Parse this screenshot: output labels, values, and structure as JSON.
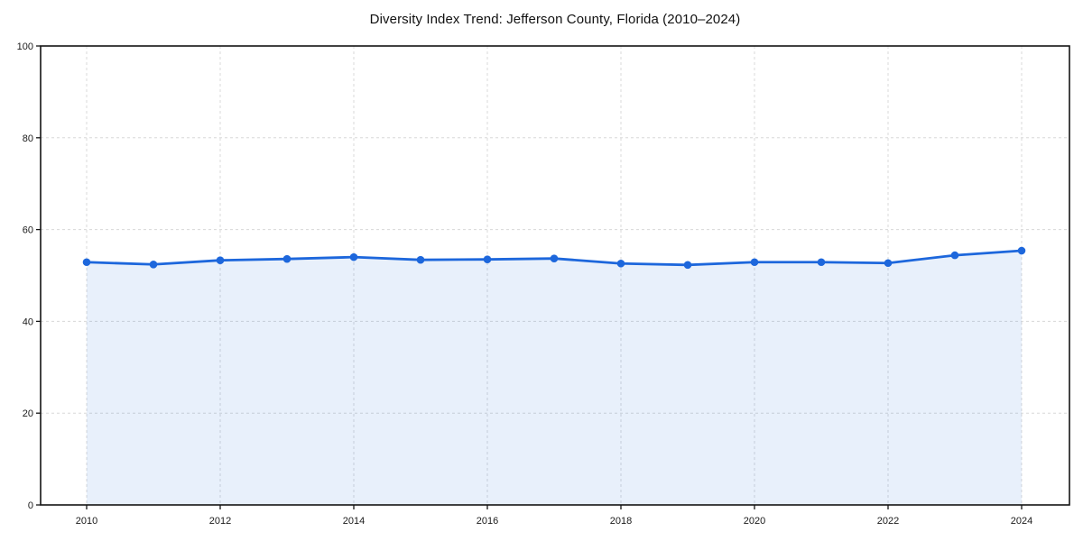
{
  "chart_data": {
    "type": "line",
    "title": "Diversity Index Trend: Jefferson County, Florida (2010–2024)",
    "x": [
      2010,
      2011,
      2012,
      2013,
      2014,
      2015,
      2016,
      2017,
      2018,
      2019,
      2020,
      2021,
      2022,
      2023,
      2024
    ],
    "series": [
      {
        "name": "Diversity Index",
        "values": [
          52.9,
          52.4,
          53.3,
          53.6,
          54.0,
          53.4,
          53.5,
          53.7,
          52.6,
          52.3,
          52.9,
          52.9,
          52.7,
          54.4,
          55.4
        ]
      }
    ],
    "xlabel": "",
    "ylabel": "",
    "ylim": [
      0,
      100
    ],
    "x_ticks": [
      2010,
      2012,
      2014,
      2016,
      2018,
      2020,
      2022,
      2024
    ],
    "y_ticks": [
      0,
      20,
      40,
      60,
      80,
      100
    ],
    "grid": "dashed at labeled ticks, both axes",
    "legend_position": "none",
    "area_fill": true,
    "marker": "circle",
    "colors": {
      "line": "#1d67dc",
      "marker": "#1d67dc",
      "area_fill": "rgba(29,103,220,0.10)",
      "grid": "#d8d8d8",
      "spine": "#141414",
      "text": "#1a1a1a",
      "background": "#ffffff"
    }
  }
}
